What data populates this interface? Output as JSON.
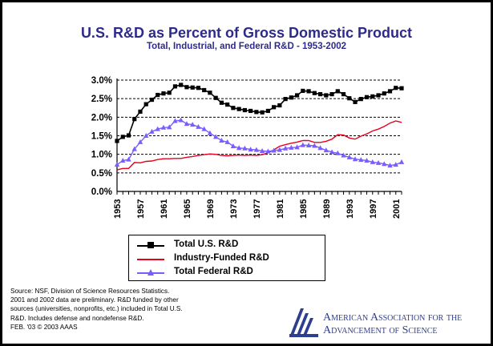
{
  "colors": {
    "title": "#2e2a8c",
    "total": "#000000",
    "industry": "#e8001c",
    "federal": "#7b5cff",
    "logo": "#2f3f8f",
    "grid": "#000000"
  },
  "chart_data": {
    "type": "line",
    "title": "U.S. R&D as Percent of Gross Domestic Product",
    "subtitle": "Total, Industrial, and Federal R&D - 1953-2002",
    "xlabel": "",
    "ylabel": "",
    "x": [
      1953,
      1954,
      1955,
      1956,
      1957,
      1958,
      1959,
      1960,
      1961,
      1962,
      1963,
      1964,
      1965,
      1966,
      1967,
      1968,
      1969,
      1970,
      1971,
      1972,
      1973,
      1974,
      1975,
      1976,
      1977,
      1978,
      1979,
      1980,
      1981,
      1982,
      1983,
      1984,
      1985,
      1986,
      1987,
      1988,
      1989,
      1990,
      1991,
      1992,
      1993,
      1994,
      1995,
      1996,
      1997,
      1998,
      1999,
      2000,
      2001,
      2002
    ],
    "x_tick_labels": [
      "1953",
      "1957",
      "1961",
      "1965",
      "1969",
      "1973",
      "1977",
      "1981",
      "1985",
      "1989",
      "1993",
      "1997",
      "2001"
    ],
    "y_tick_labels": [
      "0.0%",
      "0.5%",
      "1.0%",
      "1.5%",
      "2.0%",
      "2.5%",
      "3.0%"
    ],
    "ylim": [
      0,
      3.0
    ],
    "grid": "horizontal",
    "legend_position": "bottom",
    "series": [
      {
        "name": "Total U.S. R&D",
        "marker": "square",
        "values": [
          1.36,
          1.47,
          1.51,
          1.95,
          2.15,
          2.35,
          2.47,
          2.6,
          2.64,
          2.66,
          2.83,
          2.87,
          2.81,
          2.8,
          2.79,
          2.73,
          2.66,
          2.52,
          2.39,
          2.34,
          2.25,
          2.22,
          2.19,
          2.17,
          2.14,
          2.13,
          2.17,
          2.27,
          2.32,
          2.49,
          2.53,
          2.59,
          2.71,
          2.7,
          2.65,
          2.62,
          2.59,
          2.62,
          2.7,
          2.62,
          2.51,
          2.41,
          2.49,
          2.54,
          2.56,
          2.59,
          2.64,
          2.7,
          2.79,
          2.78
        ]
      },
      {
        "name": "Industry-Funded R&D",
        "marker": "none",
        "values": [
          0.58,
          0.62,
          0.62,
          0.78,
          0.77,
          0.81,
          0.82,
          0.86,
          0.88,
          0.88,
          0.89,
          0.89,
          0.92,
          0.94,
          0.97,
          0.99,
          1.01,
          1.0,
          0.97,
          0.96,
          0.97,
          0.98,
          0.97,
          0.98,
          0.97,
          0.99,
          1.04,
          1.12,
          1.22,
          1.26,
          1.3,
          1.33,
          1.37,
          1.37,
          1.32,
          1.32,
          1.35,
          1.41,
          1.53,
          1.52,
          1.44,
          1.41,
          1.49,
          1.55,
          1.63,
          1.68,
          1.75,
          1.84,
          1.9,
          1.86
        ]
      },
      {
        "name": "Total Federal R&D",
        "marker": "triangle",
        "values": [
          0.72,
          0.83,
          0.86,
          1.14,
          1.33,
          1.5,
          1.61,
          1.68,
          1.72,
          1.73,
          1.9,
          1.92,
          1.82,
          1.8,
          1.74,
          1.68,
          1.57,
          1.47,
          1.37,
          1.33,
          1.22,
          1.17,
          1.16,
          1.13,
          1.12,
          1.09,
          1.08,
          1.1,
          1.12,
          1.16,
          1.18,
          1.19,
          1.25,
          1.24,
          1.23,
          1.17,
          1.11,
          1.06,
          1.03,
          0.97,
          0.92,
          0.87,
          0.85,
          0.83,
          0.79,
          0.77,
          0.74,
          0.7,
          0.72,
          0.79
        ]
      }
    ]
  },
  "legend": {
    "items": [
      {
        "label": "Total U.S. R&D"
      },
      {
        "label": "Industry-Funded R&D"
      },
      {
        "label": "Total Federal R&D"
      }
    ]
  },
  "source_note": {
    "lines": [
      "Source: NSF, Division of Science Resources Statistics.",
      "2001 and 2002 data are preliminary. R&D funded by other",
      "sources (universities, nonprofits, etc.) included in Total U.S.",
      "R&D. Includes defense and nondefense R&D.",
      "FEB. '03 © 2003 AAAS"
    ]
  },
  "logo": {
    "line1": "American Association for the",
    "line2": "Advancement of Science"
  }
}
